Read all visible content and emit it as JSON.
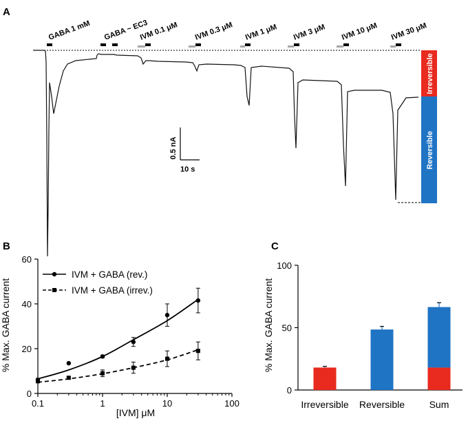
{
  "panels": {
    "a": "A",
    "b": "B",
    "c": "C"
  },
  "colors": {
    "irreversible": "#e82a1f",
    "reversible": "#1f74c4",
    "trace": "#111111",
    "bar_gray": "#a6a6a6",
    "bar_black": "#000000"
  },
  "panel_a": {
    "applications": [
      {
        "label": "GABA 1 mM",
        "has_gray": false
      },
      {
        "label": "GABA ~ EC3",
        "has_gray": false
      },
      {
        "label": "IVM 0.1 μM",
        "has_gray": true
      },
      {
        "label": "IVM 0.3 μM",
        "has_gray": true
      },
      {
        "label": "IVM 1 μM",
        "has_gray": true
      },
      {
        "label": "IVM 3 μM",
        "has_gray": true
      },
      {
        "label": "IVM 10 μM",
        "has_gray": true
      },
      {
        "label": "IVM 30 μM",
        "has_gray": true
      }
    ],
    "scale_current": "0.5 nA",
    "scale_time": "10 s",
    "irreversible_label": "Irreversible",
    "reversible_label": "Reversible"
  },
  "chart_data": [
    {
      "type": "line",
      "title": "",
      "xlabel": "[IVM] μM",
      "ylabel": "% Max. GABA current",
      "xscale": "log",
      "xlim": [
        0.1,
        100
      ],
      "ylim": [
        0,
        60
      ],
      "xticks": [
        "0.1",
        "1",
        "10",
        "100"
      ],
      "yticks": [
        "0",
        "20",
        "40",
        "60"
      ],
      "legend_position": "top-left",
      "series": [
        {
          "name": "IVM + GABA (rev.)",
          "marker": "circle",
          "line": "solid",
          "x": [
            0.1,
            0.3,
            1,
            3,
            10,
            30
          ],
          "y": [
            6.0,
            13.5,
            16.5,
            23.0,
            35.0,
            41.5
          ],
          "err": [
            0.8,
            0,
            0.6,
            2.0,
            5.0,
            5.5
          ],
          "fit": [
            6.5,
            10.5,
            16.5,
            24.0,
            32.5,
            42.0
          ]
        },
        {
          "name": "IVM + GABA (irrev.)",
          "marker": "square",
          "line": "dashed",
          "x": [
            0.1,
            0.3,
            1,
            3,
            10,
            30
          ],
          "y": [
            5.5,
            7.0,
            9.0,
            11.5,
            15.5,
            19.0
          ],
          "err": [
            0.8,
            0.5,
            1.5,
            2.5,
            3.5,
            4.0
          ],
          "fit": [
            5.0,
            6.5,
            8.8,
            11.5,
            15.0,
            19.5
          ]
        }
      ]
    },
    {
      "type": "bar",
      "title": "",
      "xlabel": "",
      "ylabel": "% Max. GABA current",
      "ylim": [
        0,
        100
      ],
      "yticks": [
        "0",
        "50",
        "100"
      ],
      "categories": [
        "Irreversible",
        "Reversible",
        "Sum"
      ],
      "series": [
        {
          "name": "Irreversible",
          "color": "#e82a1f",
          "values": [
            18,
            0,
            18
          ],
          "err": [
            1,
            0,
            0
          ]
        },
        {
          "name": "Reversible",
          "color": "#1f74c4",
          "values": [
            0,
            48.5,
            48.5
          ],
          "err": [
            0,
            2.5,
            3.5
          ]
        }
      ]
    }
  ]
}
